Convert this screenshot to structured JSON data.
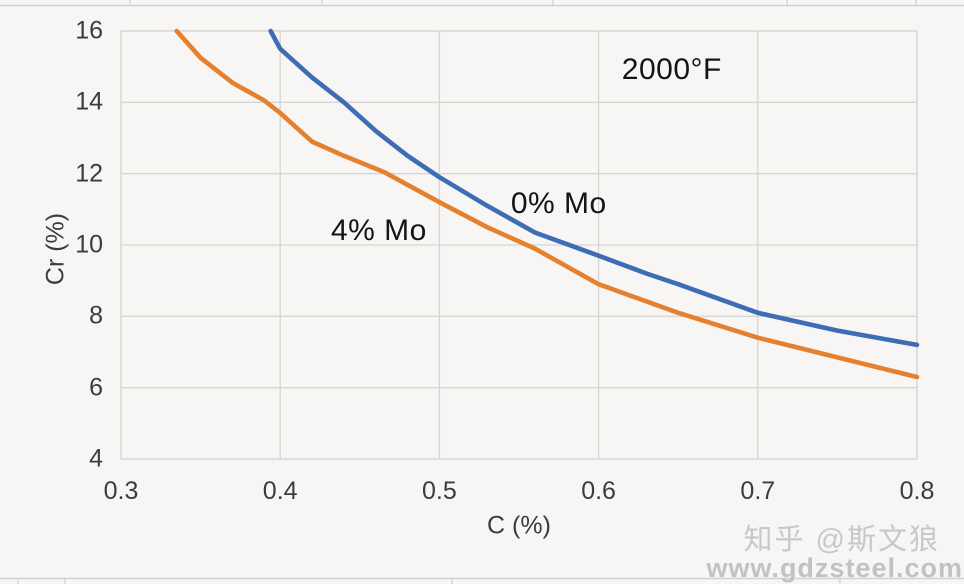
{
  "chart_data": {
    "type": "line",
    "title": "",
    "xlabel": "C (%)",
    "ylabel": "Cr (%)",
    "xlim": [
      0.3,
      0.8
    ],
    "ylim": [
      4,
      16
    ],
    "x_tick_labels": [
      "0.3",
      "0.4",
      "0.5",
      "0.6",
      "0.7",
      "0.8"
    ],
    "y_tick_labels": [
      "4",
      "6",
      "8",
      "10",
      "12",
      "14",
      "16"
    ],
    "grid": true,
    "legend_position": "none (labels drawn inline on plot)",
    "grid_color": "#d7d5d2",
    "annotations": [
      {
        "text": "2000°F",
        "x": 0.646,
        "y": 14.9
      },
      {
        "text": "0% Mo",
        "x": 0.575,
        "y": 11.15
      },
      {
        "text": "4% Mo",
        "x": 0.462,
        "y": 10.4
      }
    ],
    "series": [
      {
        "name": "0% Mo",
        "color": "#3E6CB5",
        "points": [
          [
            0.394,
            16.0
          ],
          [
            0.4,
            15.5
          ],
          [
            0.42,
            14.7
          ],
          [
            0.44,
            14.0
          ],
          [
            0.46,
            13.2
          ],
          [
            0.48,
            12.5
          ],
          [
            0.5,
            11.9
          ],
          [
            0.53,
            11.1
          ],
          [
            0.56,
            10.35
          ],
          [
            0.6,
            9.7
          ],
          [
            0.63,
            9.2
          ],
          [
            0.65,
            8.9
          ],
          [
            0.7,
            8.1
          ],
          [
            0.75,
            7.6
          ],
          [
            0.8,
            7.2
          ]
        ]
      },
      {
        "name": "4% Mo",
        "color": "#E5802F",
        "points": [
          [
            0.335,
            16.0
          ],
          [
            0.35,
            15.25
          ],
          [
            0.37,
            14.55
          ],
          [
            0.39,
            14.05
          ],
          [
            0.4,
            13.7
          ],
          [
            0.42,
            12.9
          ],
          [
            0.44,
            12.5
          ],
          [
            0.465,
            12.05
          ],
          [
            0.5,
            11.2
          ],
          [
            0.53,
            10.5
          ],
          [
            0.56,
            9.9
          ],
          [
            0.6,
            8.9
          ],
          [
            0.65,
            8.1
          ],
          [
            0.7,
            7.4
          ],
          [
            0.75,
            6.85
          ],
          [
            0.8,
            6.3
          ]
        ]
      }
    ]
  },
  "watermark": {
    "line1": "知乎 @斯文狼",
    "line2": "www.gdzsteel.com"
  }
}
